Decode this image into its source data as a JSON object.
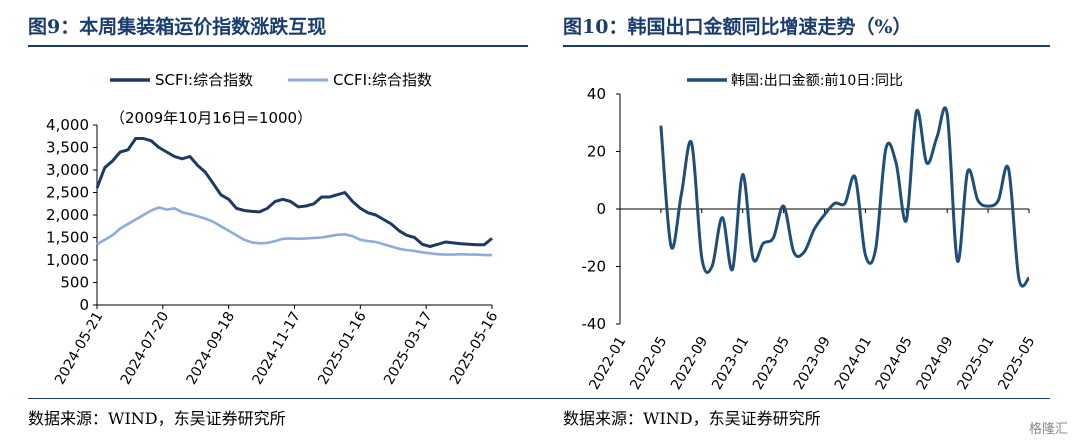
{
  "left": {
    "title": "图9：本周集装箱运价指数涨跌互现",
    "source": "数据来源：WIND，东吴证券研究所",
    "chart_data": {
      "type": "line",
      "title": "",
      "annotation": "（2009年10月16日=1000）",
      "x_tick_labels": [
        "2024-05-21",
        "2024-07-20",
        "2024-09-18",
        "2024-11-17",
        "2025-01-16",
        "2025-03-17",
        "2025-05-16"
      ],
      "y_tick_labels": [
        "0",
        "500",
        "1,000",
        "1,500",
        "2,000",
        "2,500",
        "3,000",
        "3,500",
        "4,000"
      ],
      "ylim": [
        0,
        4000
      ],
      "x_range_weeks": [
        0,
        51
      ],
      "legend_position": "top",
      "grid": false,
      "series": [
        {
          "name": "SCFI:综合指数",
          "color": "#1f3864",
          "x": [
            0,
            1,
            2,
            3,
            4,
            5,
            6,
            7,
            8,
            9,
            10,
            11,
            12,
            13,
            14,
            15,
            16,
            17,
            18,
            19,
            20,
            21,
            22,
            23,
            24,
            25,
            26,
            27,
            28,
            29,
            30,
            31,
            32,
            33,
            34,
            35,
            36,
            37,
            38,
            39,
            40,
            41,
            42,
            43,
            44,
            45,
            46,
            47,
            48,
            49,
            50,
            51
          ],
          "values": [
            2600,
            3050,
            3200,
            3400,
            3450,
            3700,
            3700,
            3650,
            3500,
            3400,
            3300,
            3250,
            3300,
            3100,
            2950,
            2700,
            2450,
            2350,
            2150,
            2100,
            2080,
            2070,
            2150,
            2300,
            2350,
            2300,
            2180,
            2200,
            2250,
            2400,
            2400,
            2450,
            2500,
            2300,
            2150,
            2050,
            2000,
            1900,
            1800,
            1650,
            1550,
            1500,
            1350,
            1300,
            1350,
            1400,
            1380,
            1360,
            1350,
            1340,
            1340,
            1480
          ]
        },
        {
          "name": "CCFI:综合指数",
          "color": "#8faadc",
          "x": [
            0,
            1,
            2,
            3,
            4,
            5,
            6,
            7,
            8,
            9,
            10,
            11,
            12,
            13,
            14,
            15,
            16,
            17,
            18,
            19,
            20,
            21,
            22,
            23,
            24,
            25,
            26,
            27,
            28,
            29,
            30,
            31,
            32,
            33,
            34,
            35,
            36,
            37,
            38,
            39,
            40,
            41,
            42,
            43,
            44,
            45,
            46,
            47,
            48,
            49,
            50,
            51
          ],
          "values": [
            1350,
            1450,
            1550,
            1700,
            1800,
            1900,
            2000,
            2100,
            2170,
            2120,
            2150,
            2060,
            2020,
            1970,
            1920,
            1850,
            1750,
            1650,
            1550,
            1450,
            1390,
            1370,
            1380,
            1420,
            1470,
            1480,
            1470,
            1480,
            1490,
            1500,
            1530,
            1560,
            1570,
            1530,
            1450,
            1420,
            1400,
            1350,
            1300,
            1250,
            1220,
            1200,
            1170,
            1150,
            1130,
            1120,
            1120,
            1130,
            1120,
            1120,
            1110,
            1110
          ]
        }
      ]
    }
  },
  "right": {
    "title": "图10：韩国出口金额同比增速走势（%）",
    "source": "数据来源：WIND，东吴证券研究所",
    "chart_data": {
      "type": "line",
      "title": "",
      "x_tick_labels": [
        "2022-01",
        "2022-05",
        "2022-09",
        "2023-01",
        "2023-05",
        "2023-09",
        "2024-01",
        "2024-05",
        "2024-09",
        "2025-01",
        "2025-05"
      ],
      "y_tick_labels": [
        "-40",
        "-20",
        "0",
        "20",
        "40"
      ],
      "ylim": [
        -40,
        40
      ],
      "x_range_months": [
        0,
        40
      ],
      "legend_position": "top",
      "grid": false,
      "series": [
        {
          "name": "韩国:出口金额:前10日:同比",
          "color": "#1f4e79",
          "x": [
            4,
            5,
            6,
            7,
            8,
            9,
            10,
            11,
            12,
            13,
            14,
            15,
            16,
            17,
            18,
            19,
            20,
            21,
            22,
            23,
            24,
            25,
            26,
            27,
            28,
            29,
            30,
            31,
            32,
            33,
            34,
            35,
            36,
            37,
            38,
            39,
            40
          ],
          "values": [
            29,
            -13,
            5,
            23,
            -17,
            -20,
            -3,
            -21,
            12,
            -17,
            -12,
            -10,
            1,
            -15,
            -15,
            -7,
            -2,
            2,
            2,
            11,
            -16,
            -14,
            21,
            16,
            -4,
            34,
            16,
            25,
            33,
            -18,
            13,
            3,
            1,
            3,
            14,
            -24,
            -24
          ]
        }
      ]
    }
  },
  "watermark": "格隆汇"
}
